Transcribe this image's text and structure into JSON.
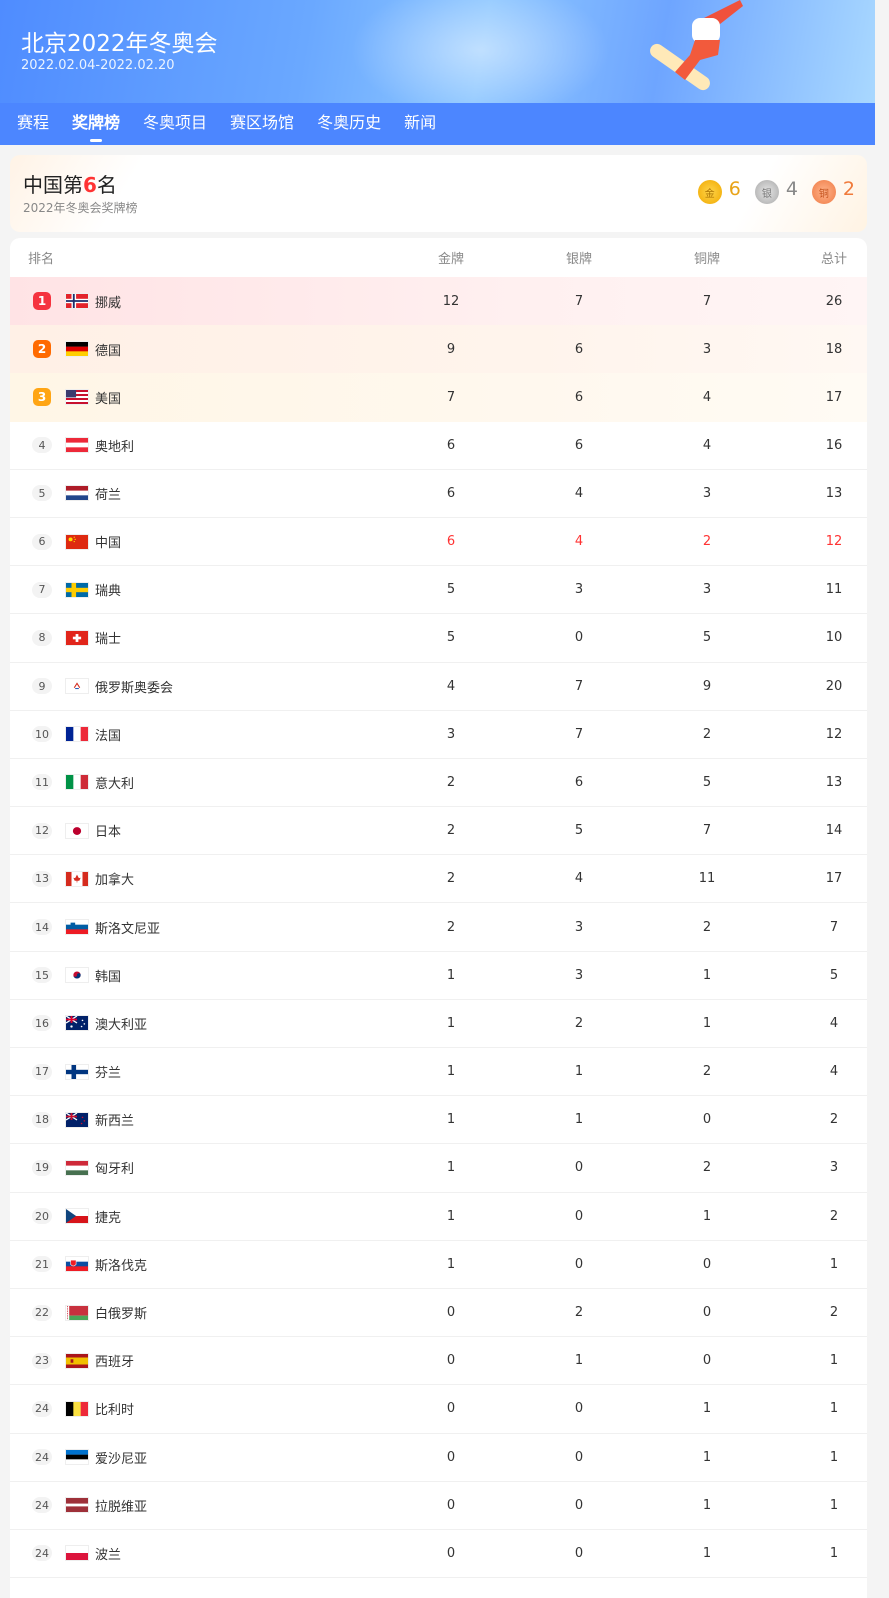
{
  "header": {
    "title": "北京2022年冬奥会",
    "dates": "2022.02.04-2022.02.20"
  },
  "nav": {
    "tabs": [
      {
        "label": "赛程"
      },
      {
        "label": "奖牌榜",
        "active": true
      },
      {
        "label": "冬奥项目"
      },
      {
        "label": "赛区场馆"
      },
      {
        "label": "冬奥历史"
      },
      {
        "label": "新闻"
      }
    ]
  },
  "summary": {
    "prefix": "中国第",
    "rank": "6",
    "suffix": "名",
    "subtitle": "2022年冬奥会奖牌榜",
    "medals": [
      {
        "icon": "gold-medal-icon",
        "glyph": "金",
        "count": "6",
        "color": "#e8a317"
      },
      {
        "icon": "silver-medal-icon",
        "glyph": "银",
        "count": "4",
        "color": "#888888"
      },
      {
        "icon": "bronze-medal-icon",
        "glyph": "铜",
        "count": "2",
        "color": "#f07a3a"
      }
    ]
  },
  "table": {
    "headers": {
      "rank": "排名",
      "gold": "金牌",
      "silver": "银牌",
      "bronze": "铜牌",
      "total": "总计"
    },
    "highlight_color": "#ff3333",
    "rows": [
      {
        "rank": "1",
        "name": "挪威",
        "flag": "norway",
        "gold": "12",
        "silver": "7",
        "bronze": "7",
        "total": "26"
      },
      {
        "rank": "2",
        "name": "德国",
        "flag": "germany",
        "gold": "9",
        "silver": "6",
        "bronze": "3",
        "total": "18"
      },
      {
        "rank": "3",
        "name": "美国",
        "flag": "usa",
        "gold": "7",
        "silver": "6",
        "bronze": "4",
        "total": "17"
      },
      {
        "rank": "4",
        "name": "奥地利",
        "flag": "austria",
        "gold": "6",
        "silver": "6",
        "bronze": "4",
        "total": "16"
      },
      {
        "rank": "5",
        "name": "荷兰",
        "flag": "netherlands",
        "gold": "6",
        "silver": "4",
        "bronze": "3",
        "total": "13"
      },
      {
        "rank": "6",
        "name": "中国",
        "flag": "china",
        "gold": "6",
        "silver": "4",
        "bronze": "2",
        "total": "12",
        "highlight": true
      },
      {
        "rank": "7",
        "name": "瑞典",
        "flag": "sweden",
        "gold": "5",
        "silver": "3",
        "bronze": "3",
        "total": "11"
      },
      {
        "rank": "8",
        "name": "瑞士",
        "flag": "switzerland",
        "gold": "5",
        "silver": "0",
        "bronze": "5",
        "total": "10"
      },
      {
        "rank": "9",
        "name": "俄罗斯奥委会",
        "flag": "roc",
        "gold": "4",
        "silver": "7",
        "bronze": "9",
        "total": "20"
      },
      {
        "rank": "10",
        "name": "法国",
        "flag": "france",
        "gold": "3",
        "silver": "7",
        "bronze": "2",
        "total": "12"
      },
      {
        "rank": "11",
        "name": "意大利",
        "flag": "italy",
        "gold": "2",
        "silver": "6",
        "bronze": "5",
        "total": "13"
      },
      {
        "rank": "12",
        "name": "日本",
        "flag": "japan",
        "gold": "2",
        "silver": "5",
        "bronze": "7",
        "total": "14"
      },
      {
        "rank": "13",
        "name": "加拿大",
        "flag": "canada",
        "gold": "2",
        "silver": "4",
        "bronze": "11",
        "total": "17"
      },
      {
        "rank": "14",
        "name": "斯洛文尼亚",
        "flag": "slovenia",
        "gold": "2",
        "silver": "3",
        "bronze": "2",
        "total": "7"
      },
      {
        "rank": "15",
        "name": "韩国",
        "flag": "korea",
        "gold": "1",
        "silver": "3",
        "bronze": "1",
        "total": "5"
      },
      {
        "rank": "16",
        "name": "澳大利亚",
        "flag": "australia",
        "gold": "1",
        "silver": "2",
        "bronze": "1",
        "total": "4"
      },
      {
        "rank": "17",
        "name": "芬兰",
        "flag": "finland",
        "gold": "1",
        "silver": "1",
        "bronze": "2",
        "total": "4"
      },
      {
        "rank": "18",
        "name": "新西兰",
        "flag": "newzealand",
        "gold": "1",
        "silver": "1",
        "bronze": "0",
        "total": "2"
      },
      {
        "rank": "19",
        "name": "匈牙利",
        "flag": "hungary",
        "gold": "1",
        "silver": "0",
        "bronze": "2",
        "total": "3"
      },
      {
        "rank": "20",
        "name": "捷克",
        "flag": "czech",
        "gold": "1",
        "silver": "0",
        "bronze": "1",
        "total": "2"
      },
      {
        "rank": "21",
        "name": "斯洛伐克",
        "flag": "slovakia",
        "gold": "1",
        "silver": "0",
        "bronze": "0",
        "total": "1"
      },
      {
        "rank": "22",
        "name": "白俄罗斯",
        "flag": "belarus",
        "gold": "0",
        "silver": "2",
        "bronze": "0",
        "total": "2"
      },
      {
        "rank": "23",
        "name": "西班牙",
        "flag": "spain",
        "gold": "0",
        "silver": "1",
        "bronze": "0",
        "total": "1"
      },
      {
        "rank": "24",
        "name": "比利时",
        "flag": "belgium",
        "gold": "0",
        "silver": "0",
        "bronze": "1",
        "total": "1"
      },
      {
        "rank": "24",
        "name": "爱沙尼亚",
        "flag": "estonia",
        "gold": "0",
        "silver": "0",
        "bronze": "1",
        "total": "1"
      },
      {
        "rank": "24",
        "name": "拉脱维亚",
        "flag": "latvia",
        "gold": "0",
        "silver": "0",
        "bronze": "1",
        "total": "1"
      },
      {
        "rank": "24",
        "name": "波兰",
        "flag": "poland",
        "gold": "0",
        "silver": "0",
        "bronze": "1",
        "total": "1"
      }
    ]
  }
}
